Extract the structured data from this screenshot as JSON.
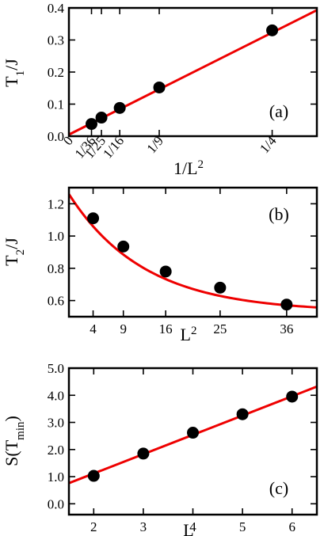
{
  "colors": {
    "fit": "#ee0000",
    "point": "#000000",
    "axis": "#000000"
  },
  "chart_data": [
    {
      "panel": "a",
      "type": "scatter",
      "panel_label": "(a)",
      "xlabel_base": "1/L",
      "xlabel_sup": "2",
      "ylabel_base": "T",
      "ylabel_sub": "1",
      "ylabel_tail": "/J",
      "xlim": [
        0,
        0.305
      ],
      "ylim": [
        0,
        0.4
      ],
      "yticks": [
        0,
        0.1,
        0.2,
        0.3,
        0.4
      ],
      "ytick_labels": [
        "0.0",
        "0.1",
        "0.2",
        "0.3",
        "0.4"
      ],
      "xticks": [
        0,
        0.02778,
        0.04,
        0.0625,
        0.1111,
        0.25
      ],
      "xtick_labels": [
        "0",
        "1/36",
        "1/25",
        "1/16",
        "1/9",
        "1/4"
      ],
      "points": [
        {
          "x": 0.02778,
          "y": 0.038
        },
        {
          "x": 0.04,
          "y": 0.058
        },
        {
          "x": 0.0625,
          "y": 0.088
        },
        {
          "x": 0.1111,
          "y": 0.152
        },
        {
          "x": 0.25,
          "y": 0.33
        }
      ],
      "fit": {
        "kind": "linear",
        "x": [
          0,
          0.305
        ],
        "y": [
          0.005,
          0.393
        ]
      }
    },
    {
      "panel": "b",
      "type": "scatter",
      "panel_label": "(b)",
      "xlabel_base": "L",
      "xlabel_sup": "2",
      "ylabel_base": "T",
      "ylabel_sub": "2",
      "ylabel_tail": "/J",
      "xlim": [
        0,
        41
      ],
      "ylim": [
        0.5,
        1.3
      ],
      "yticks": [
        0.6,
        0.8,
        1.0,
        1.2
      ],
      "ytick_labels": [
        "0.6",
        "0.8",
        "1.0",
        "1.2"
      ],
      "xticks": [
        4,
        9,
        16,
        25,
        36
      ],
      "xtick_labels": [
        "4",
        "9",
        "16",
        "25",
        "36"
      ],
      "points": [
        {
          "x": 4,
          "y": 1.11
        },
        {
          "x": 9,
          "y": 0.935
        },
        {
          "x": 16,
          "y": 0.78
        },
        {
          "x": 25,
          "y": 0.68
        },
        {
          "x": 36,
          "y": 0.575
        }
      ],
      "fit": {
        "kind": "exp",
        "a": 0.53,
        "b": 0.73,
        "tau": 12.5,
        "x": [
          0,
          41
        ]
      }
    },
    {
      "panel": "c",
      "type": "scatter",
      "panel_label": "(c)",
      "xlabel_base": "L",
      "ylabel_base": "S(T",
      "ylabel_sub": "min",
      "ylabel_tail": ")",
      "xlim": [
        1.5,
        6.5
      ],
      "ylim": [
        -0.4,
        5.0
      ],
      "yticks": [
        0,
        1,
        2,
        3,
        4,
        5
      ],
      "ytick_labels": [
        "0.0",
        "1.0",
        "2.0",
        "3.0",
        "4.0",
        "5.0"
      ],
      "xticks": [
        2,
        3,
        4,
        5,
        6
      ],
      "xtick_labels": [
        "2",
        "3",
        "4",
        "5",
        "6"
      ],
      "points": [
        {
          "x": 2,
          "y": 1.03
        },
        {
          "x": 3,
          "y": 1.85
        },
        {
          "x": 4,
          "y": 2.62
        },
        {
          "x": 5,
          "y": 3.3
        },
        {
          "x": 6,
          "y": 3.95
        }
      ],
      "fit": {
        "kind": "linear",
        "x": [
          1.5,
          6.5
        ],
        "y": [
          0.76,
          4.32
        ]
      }
    }
  ]
}
